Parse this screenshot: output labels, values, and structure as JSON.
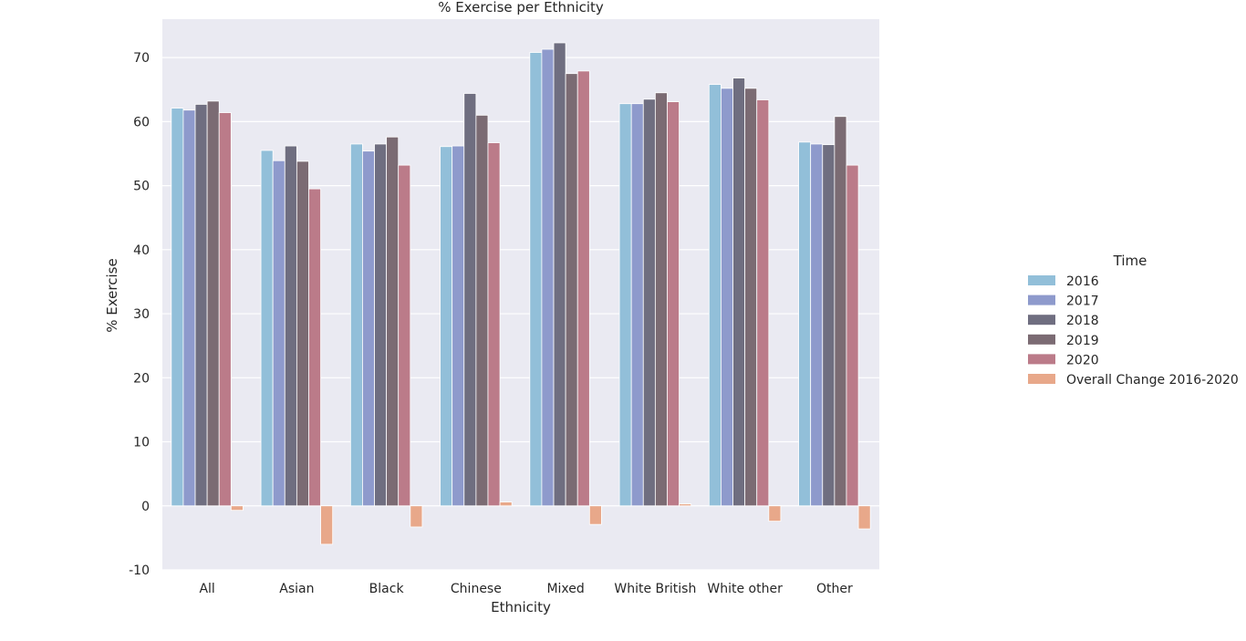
{
  "chart_data": {
    "type": "bar",
    "title": "% Exercise per Ethnicity",
    "xlabel": "Ethnicity",
    "ylabel": "% Exercise",
    "ylim": [
      -10,
      76
    ],
    "yticks": [
      -10,
      0,
      10,
      20,
      30,
      40,
      50,
      60,
      70
    ],
    "grid": true,
    "legend_title": "Time",
    "legend_position": "right",
    "categories": [
      "All",
      "Asian",
      "Black",
      "Chinese",
      "Mixed",
      "White British",
      "White other",
      "Other"
    ],
    "series": [
      {
        "name": "2016",
        "color": "#92bfd9",
        "values": [
          62.1,
          55.5,
          56.5,
          56.1,
          70.8,
          62.8,
          65.8,
          56.8
        ]
      },
      {
        "name": "2017",
        "color": "#8e9acc",
        "values": [
          61.8,
          53.9,
          55.4,
          56.2,
          71.3,
          62.8,
          65.2,
          56.5
        ]
      },
      {
        "name": "2018",
        "color": "#6f6e80",
        "values": [
          62.7,
          56.2,
          56.5,
          64.4,
          72.3,
          63.5,
          66.8,
          56.4
        ]
      },
      {
        "name": "2019",
        "color": "#7b6b73",
        "values": [
          63.2,
          53.8,
          57.6,
          61.0,
          67.5,
          64.5,
          65.2,
          60.8
        ]
      },
      {
        "name": "2020",
        "color": "#bb7b89",
        "values": [
          61.4,
          49.5,
          53.2,
          56.7,
          67.9,
          63.1,
          63.4,
          53.2
        ]
      },
      {
        "name": "Overall Change 2016-2020",
        "color": "#e8a88a",
        "values": [
          -0.7,
          -6.0,
          -3.3,
          0.6,
          -2.9,
          0.3,
          -2.4,
          -3.6
        ]
      }
    ]
  }
}
